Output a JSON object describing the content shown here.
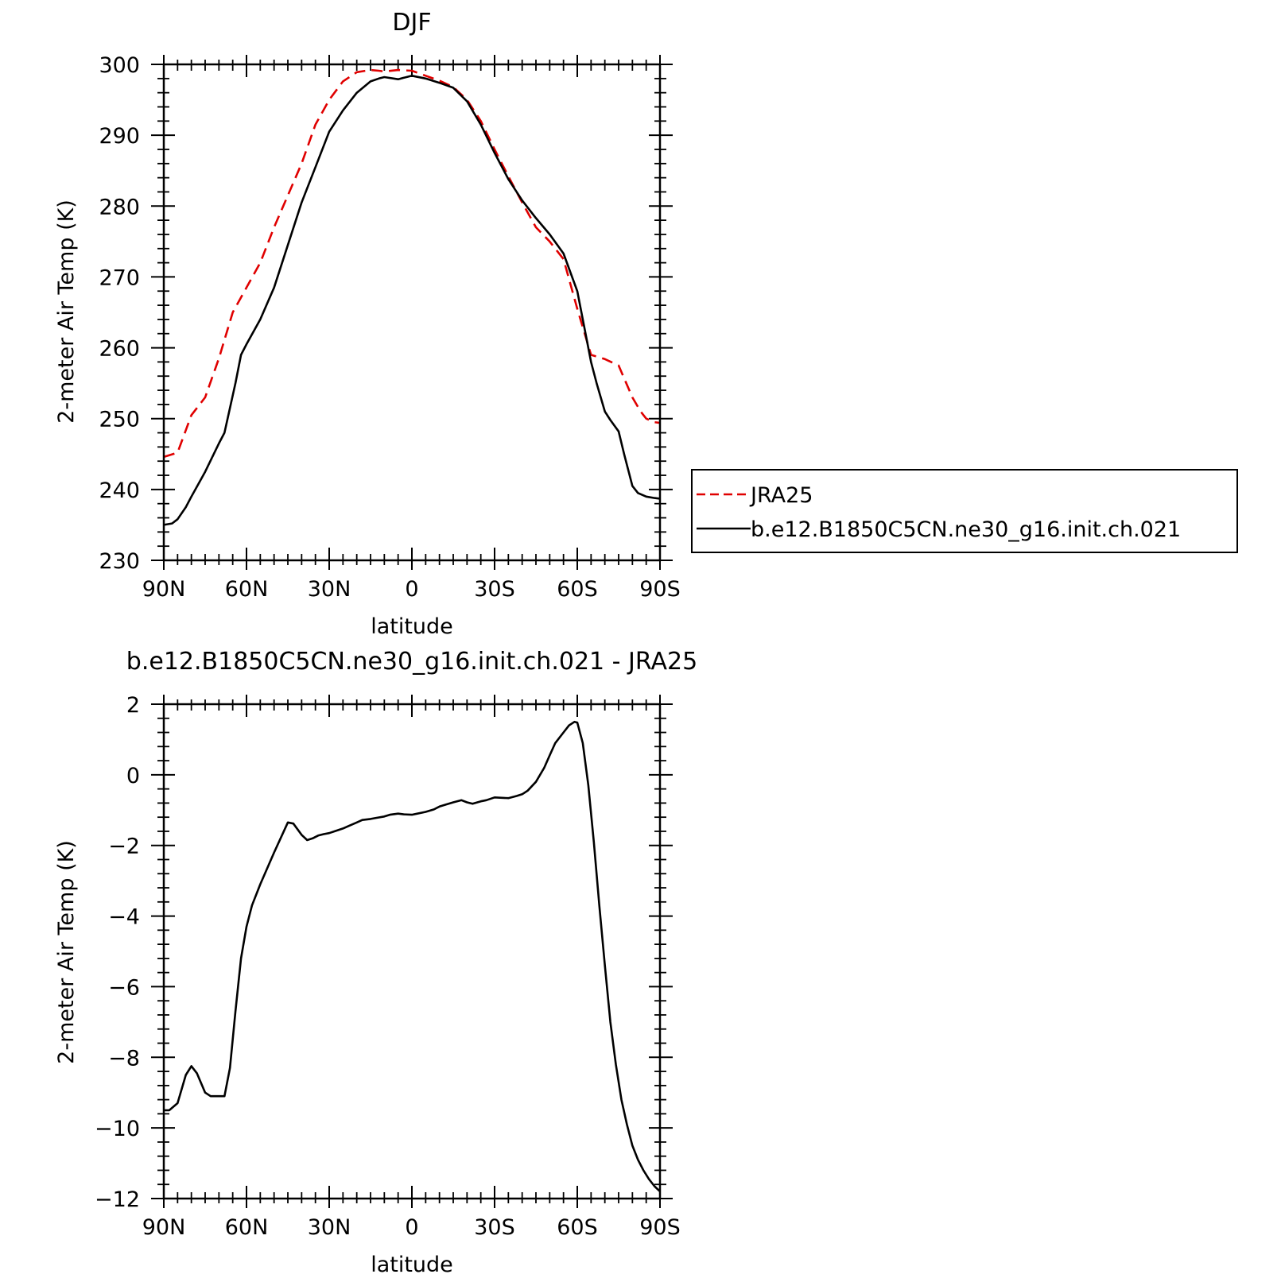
{
  "chart_data": [
    {
      "type": "line",
      "title": "DJF",
      "xlabel": "latitude",
      "ylabel": "2-meter Air Temp (K)",
      "xlim": [
        90,
        -90
      ],
      "ylim": [
        230,
        300
      ],
      "x_ticks": [
        90,
        60,
        30,
        0,
        -30,
        -60,
        -90
      ],
      "x_tick_labels": [
        "90N",
        "60N",
        "30N",
        "0",
        "30S",
        "60S",
        "90S"
      ],
      "y_ticks": [
        230,
        240,
        250,
        260,
        270,
        280,
        290,
        300
      ],
      "y_tick_labels": [
        "230",
        "240",
        "250",
        "260",
        "270",
        "280",
        "290",
        "300"
      ],
      "legend_position": "right",
      "series": [
        {
          "name": "JRA25",
          "color": "#e00000",
          "dash": true,
          "x": [
            90,
            85,
            80,
            75,
            70,
            65,
            60,
            55,
            50,
            45,
            40,
            35,
            30,
            25,
            20,
            15,
            12,
            10,
            5,
            0,
            -5,
            -10,
            -15,
            -20,
            -25,
            -30,
            -35,
            -40,
            -45,
            -50,
            -55,
            -60,
            -65,
            -70,
            -75,
            -80,
            -83,
            -85,
            -88,
            -90
          ],
          "values": [
            244.6,
            245.2,
            250.5,
            253.0,
            258.5,
            265.0,
            268.5,
            272.0,
            277.0,
            281.5,
            286.0,
            291.5,
            295.0,
            297.6,
            298.9,
            299.2,
            299.1,
            299.0,
            299.2,
            299.1,
            298.4,
            297.7,
            296.8,
            295.0,
            292.0,
            288.0,
            284.2,
            280.5,
            277.0,
            275.0,
            272.5,
            265.5,
            259.0,
            258.4,
            257.5,
            253.0,
            251.0,
            250.0,
            249.5,
            249.4
          ]
        },
        {
          "name": "b.e12.B1850C5CN.ne30_g16.init.ch.021",
          "color": "#000000",
          "dash": false,
          "x": [
            90,
            87,
            85,
            82,
            80,
            75,
            70,
            68,
            66,
            64,
            62,
            60,
            55,
            50,
            45,
            40,
            35,
            30,
            25,
            20,
            15,
            12,
            10,
            5,
            3,
            0,
            -5,
            -10,
            -15,
            -20,
            -25,
            -30,
            -35,
            -40,
            -45,
            -50,
            -55,
            -60,
            -63,
            -65,
            -67,
            -70,
            -72,
            -75,
            -77,
            -80,
            -82,
            -85,
            -88,
            -90
          ],
          "values": [
            235.0,
            235.2,
            235.8,
            237.5,
            239.0,
            242.5,
            246.5,
            248.0,
            251.5,
            255.0,
            259.0,
            260.5,
            264.0,
            268.5,
            274.5,
            280.5,
            285.5,
            290.5,
            293.5,
            296.0,
            297.6,
            298.0,
            298.2,
            297.9,
            298.1,
            298.4,
            298.0,
            297.4,
            296.7,
            294.8,
            291.5,
            287.5,
            283.8,
            280.8,
            278.3,
            276.0,
            273.3,
            268.0,
            262.0,
            258.0,
            255.0,
            251.0,
            249.8,
            248.2,
            245.0,
            240.5,
            239.5,
            239.0,
            238.8,
            238.7
          ]
        }
      ]
    },
    {
      "type": "line",
      "title": "b.e12.B1850C5CN.ne30_g16.init.ch.021 - JRA25",
      "xlabel": "latitude",
      "ylabel": "2-meter Air Temp (K)",
      "xlim": [
        90,
        -90
      ],
      "ylim": [
        -12,
        2
      ],
      "x_ticks": [
        90,
        60,
        30,
        0,
        -30,
        -60,
        -90
      ],
      "x_tick_labels": [
        "90N",
        "60N",
        "30N",
        "0",
        "30S",
        "60S",
        "90S"
      ],
      "y_ticks": [
        -12,
        -10,
        -8,
        -6,
        -4,
        -2,
        0,
        2
      ],
      "y_tick_labels": [
        "-12",
        "-10",
        "-8",
        "-6",
        "-4",
        "-2",
        "0",
        "2"
      ],
      "series": [
        {
          "color": "#000000",
          "dash": false,
          "x": [
            90,
            88,
            85,
            82,
            80,
            78,
            75,
            73,
            70,
            68,
            66,
            64,
            62,
            60,
            58,
            55,
            50,
            45,
            43,
            40,
            38,
            36,
            34,
            32,
            30,
            28,
            25,
            23,
            20,
            18,
            15,
            13,
            10,
            8,
            5,
            3,
            0,
            -2,
            -5,
            -8,
            -10,
            -12,
            -15,
            -18,
            -20,
            -22,
            -25,
            -27,
            -30,
            -32,
            -35,
            -38,
            -40,
            -42,
            -45,
            -48,
            -50,
            -52,
            -55,
            -57,
            -59,
            -60,
            -62,
            -64,
            -66,
            -68,
            -70,
            -72,
            -74,
            -76,
            -78,
            -80,
            -82,
            -84,
            -86,
            -88,
            -90
          ],
          "values": [
            -9.5,
            -9.5,
            -9.3,
            -8.5,
            -8.25,
            -8.45,
            -9.0,
            -9.1,
            -9.1,
            -9.1,
            -8.3,
            -6.7,
            -5.2,
            -4.3,
            -3.7,
            -3.1,
            -2.2,
            -1.35,
            -1.38,
            -1.7,
            -1.85,
            -1.8,
            -1.72,
            -1.68,
            -1.65,
            -1.6,
            -1.52,
            -1.45,
            -1.35,
            -1.28,
            -1.25,
            -1.22,
            -1.18,
            -1.13,
            -1.1,
            -1.12,
            -1.13,
            -1.1,
            -1.05,
            -0.98,
            -0.9,
            -0.85,
            -0.78,
            -0.72,
            -0.78,
            -0.82,
            -0.75,
            -0.72,
            -0.64,
            -0.65,
            -0.66,
            -0.6,
            -0.55,
            -0.45,
            -0.2,
            0.2,
            0.55,
            0.9,
            1.2,
            1.4,
            1.5,
            1.48,
            0.9,
            -0.3,
            -1.9,
            -3.7,
            -5.4,
            -7.0,
            -8.2,
            -9.2,
            -9.9,
            -10.5,
            -10.9,
            -11.2,
            -11.45,
            -11.65,
            -11.8
          ]
        }
      ]
    }
  ]
}
